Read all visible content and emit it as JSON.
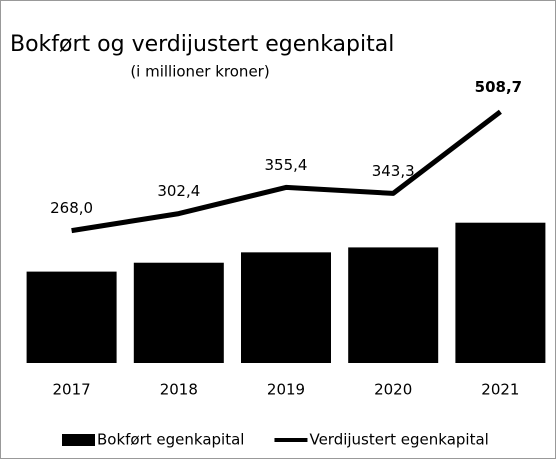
{
  "chart_data": {
    "type": "bar-line",
    "title": "Bokført og verdijustert egenkapital",
    "subtitle": "(i millioner kroner)",
    "categories": [
      "2017",
      "2018",
      "2019",
      "2020",
      "2021"
    ],
    "series": [
      {
        "name": "Bokført egenkapital",
        "type": "bar",
        "color": "#000000",
        "values": [
          185,
          203,
          224,
          234,
          284
        ]
      },
      {
        "name": "Verdijustert egenkapital",
        "type": "line",
        "color": "#000000",
        "values": [
          268.0,
          302.4,
          355.4,
          343.3,
          508.7
        ],
        "value_labels": [
          "268,0",
          "302,4",
          "355,4",
          "343,3",
          "508,7"
        ]
      }
    ],
    "legend": "bottom"
  }
}
